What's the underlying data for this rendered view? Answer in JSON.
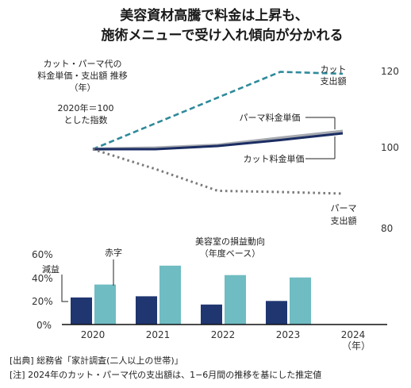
{
  "title_lines": [
    "美容資材高騰で料金は上昇も、",
    "施術メニューで受け入れ傾向が分かれる"
  ],
  "source": "[出典]  総務省「家計調査(二人以上の世帯)」",
  "note": "[注]  2024年のカット・パーマ代の支出額は、1−6月間の推移を基にした推定値",
  "chart_data": [
    {
      "type": "line",
      "title_lines": [
        "カット・パーマ代の",
        "料金単価・支出額 推移",
        "（年）"
      ],
      "subtitle_lines": [
        "2020年＝100",
        "とした指数"
      ],
      "x": [
        "2020",
        "2021",
        "2022",
        "2023",
        "2024"
      ],
      "y_ticks": [
        "120",
        "100",
        "80"
      ],
      "ylim": [
        80,
        120
      ],
      "series": [
        {
          "name_lines": [
            "カット",
            "支出額"
          ],
          "values": [
            100,
            106.5,
            113,
            119.5,
            119
          ],
          "color": "#2e8a9a",
          "style": "dashed"
        },
        {
          "name_lines": [
            "パーマ料金単価"
          ],
          "values": [
            100,
            100.3,
            101,
            102.8,
            104.5
          ],
          "color": "#a7aab0",
          "style": "solid"
        },
        {
          "name_lines": [
            "カット料金単価"
          ],
          "values": [
            100,
            100,
            100.8,
            102.3,
            104
          ],
          "color": "#1b2d63",
          "style": "solid"
        },
        {
          "name_lines": [
            "パーマ",
            "支出額"
          ],
          "values": [
            100,
            95,
            89.5,
            89.2,
            88.8
          ],
          "color": "#7a7a7a",
          "style": "dotted"
        }
      ]
    },
    {
      "type": "bar",
      "title_lines": [
        "美容室の損益動向",
        "（年度ベース）"
      ],
      "categories": [
        "2020",
        "2021",
        "2022",
        "2023",
        "2024"
      ],
      "category_suffix": "（年）",
      "y_ticks": [
        "60%",
        "40%",
        "20%",
        "0%"
      ],
      "ylim": [
        0,
        60
      ],
      "series": [
        {
          "name": "減益",
          "values": [
            23,
            24,
            17,
            20,
            null
          ],
          "color": "#1f3670"
        },
        {
          "name": "赤字",
          "values": [
            34,
            50,
            42,
            40,
            null
          ],
          "color": "#6fbcc2"
        }
      ]
    }
  ]
}
